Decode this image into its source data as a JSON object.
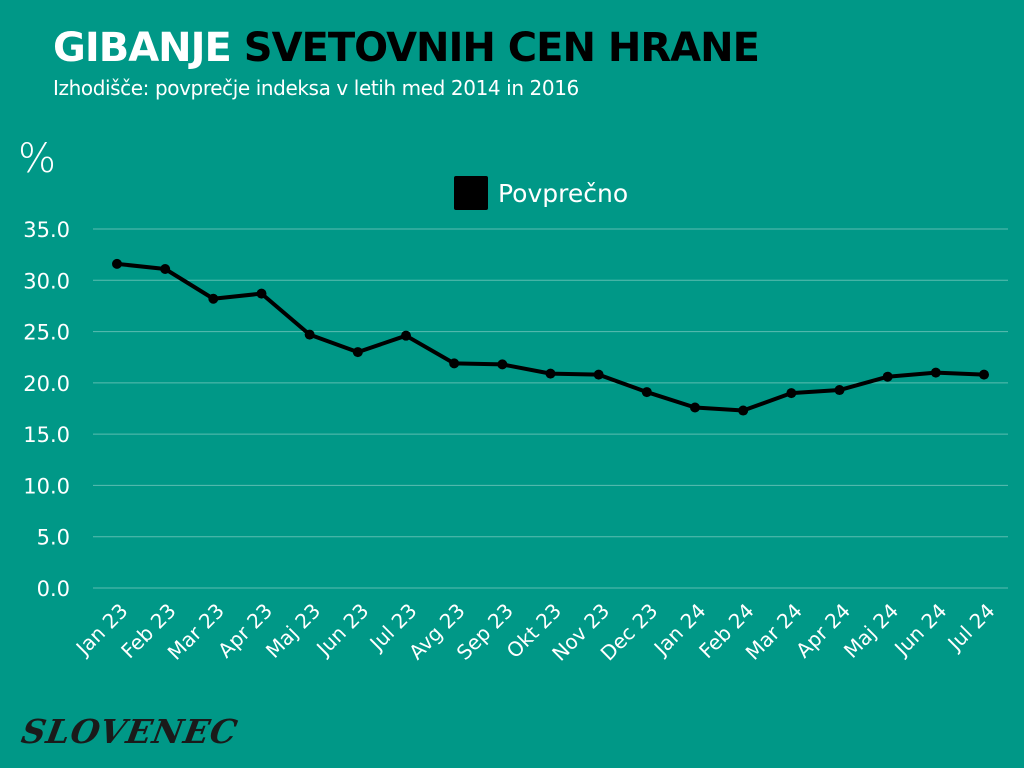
{
  "header": {
    "title_part1": "GIBANJE",
    "title_part2": "SVETOVNIH CEN HRANE",
    "subtitle": "Izhodišče: povprečje indeksa v letih med 2014 in 2016"
  },
  "unit_label": "%",
  "legend": {
    "label": "Povprečno",
    "color": "#000000"
  },
  "branding": {
    "logo": "SLOVENEC"
  },
  "colors": {
    "background": "#009887",
    "gridline": "#5bbdb1",
    "line": "#000000",
    "text": "#ffffff"
  },
  "chart_data": {
    "type": "line",
    "title": "GIBANJE SVETOVNIH CEN HRANE",
    "subtitle": "Izhodišče: povprečje indeksa v letih med 2014 in 2016",
    "xlabel": "",
    "ylabel": "%",
    "ylim": [
      0,
      35
    ],
    "yticks": [
      "0.0",
      "5.0",
      "10.0",
      "15.0",
      "20.0",
      "25.0",
      "30.0",
      "35.0"
    ],
    "grid": true,
    "legend_position": "top-center",
    "categories": [
      "Jan 23",
      "Feb 23",
      "Mar 23",
      "Apr 23",
      "Maj 23",
      "Jun 23",
      "Jul 23",
      "Avg 23",
      "Sep 23",
      "Okt 23",
      "Nov 23",
      "Dec 23",
      "Jan 24",
      "Feb 24",
      "Mar 24",
      "Apr 24",
      "Maj 24",
      "Jun 24",
      "Jul 24"
    ],
    "series": [
      {
        "name": "Povprečno",
        "values": [
          31.6,
          31.1,
          28.2,
          28.7,
          24.7,
          23.0,
          24.6,
          21.9,
          21.8,
          20.9,
          20.8,
          19.1,
          17.6,
          17.3,
          19.0,
          19.3,
          20.6,
          21.0,
          20.8
        ]
      }
    ]
  }
}
